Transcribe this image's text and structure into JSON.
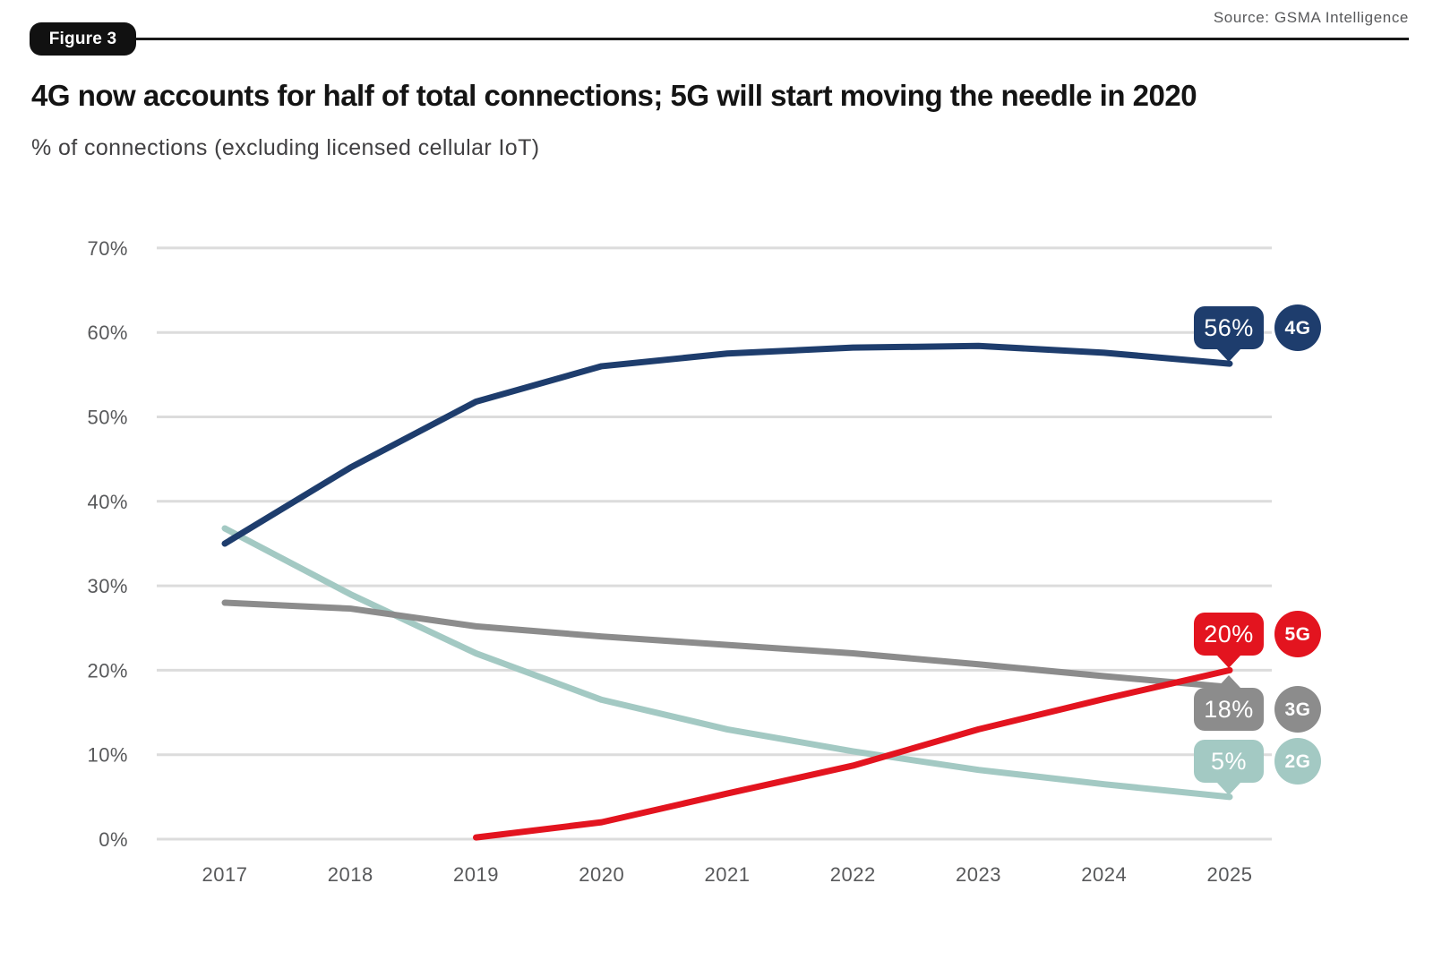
{
  "header": {
    "figure_label": "Figure 3",
    "source": "Source: GSMA Intelligence",
    "title": "4G now accounts for half of total connections; 5G will start moving the needle in 2020",
    "subtitle": "% of connections (excluding licensed cellular IoT)"
  },
  "colors": {
    "navy": "#1e3d6d",
    "red": "#e3141f",
    "gray": "#8c8c8c",
    "teal": "#a3c9c3",
    "grid": "#dcdcdc",
    "axis_text": "#58595b",
    "rule_black": "#1a1a1a"
  },
  "chart_data": {
    "type": "line",
    "title": "4G now accounts for half of total connections; 5G will start moving the needle in 2020",
    "subtitle": "% of connections (excluding licensed cellular IoT)",
    "source": "GSMA Intelligence",
    "x": [
      2017,
      2018,
      2019,
      2020,
      2021,
      2022,
      2023,
      2024,
      2025
    ],
    "xlabel": "",
    "ylabel": "% of connections",
    "ylim": [
      0,
      70
    ],
    "grid": "horizontal",
    "legend_position": "right-end-badges",
    "yticks": [
      {
        "label": "0%",
        "value": 0
      },
      {
        "label": "10%",
        "value": 10
      },
      {
        "label": "20%",
        "value": 20
      },
      {
        "label": "30%",
        "value": 30
      },
      {
        "label": "40%",
        "value": 40
      },
      {
        "label": "50%",
        "value": 50
      },
      {
        "label": "60%",
        "value": 60
      },
      {
        "label": "70%",
        "value": 70
      }
    ],
    "series": [
      {
        "name": "4G",
        "color": "#1e3d6d",
        "end_label": "56%",
        "label_position": "above",
        "values": [
          35,
          44,
          51.8,
          56,
          57.5,
          58.2,
          58.4,
          57.6,
          56.3
        ]
      },
      {
        "name": "5G",
        "color": "#e3141f",
        "end_label": "20%",
        "label_position": "above",
        "values": [
          null,
          null,
          0.2,
          2,
          5.4,
          8.7,
          13,
          16.6,
          20
        ]
      },
      {
        "name": "3G",
        "color": "#8c8c8c",
        "end_label": "18%",
        "label_position": "below",
        "values": [
          28,
          27.3,
          25.2,
          24,
          23,
          22,
          20.7,
          19.3,
          18
        ]
      },
      {
        "name": "2G",
        "color": "#a3c9c3",
        "end_label": "5%",
        "label_position": "above",
        "values": [
          36.8,
          29,
          22,
          16.5,
          13,
          10.4,
          8.2,
          6.5,
          5
        ]
      }
    ]
  }
}
